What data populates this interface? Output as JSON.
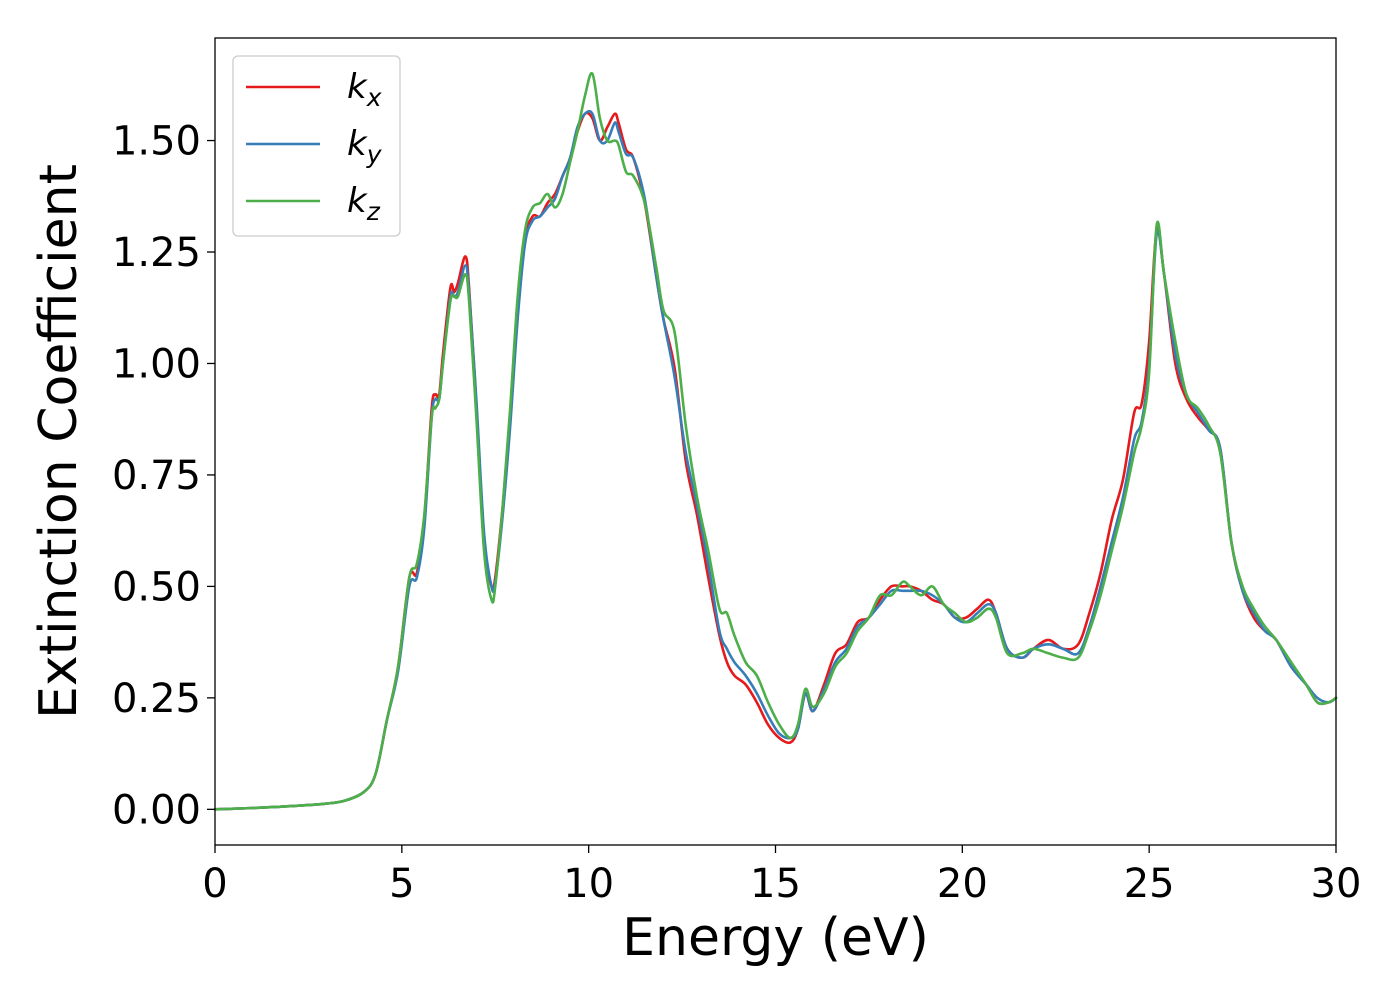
{
  "chart_data": {
    "type": "line",
    "title": "",
    "xlabel": "Energy (eV)",
    "ylabel": "Extinction Coefficient",
    "xlim": [
      0,
      30
    ],
    "ylim": [
      -0.08,
      1.73
    ],
    "xticks": [
      0,
      5,
      10,
      15,
      20,
      25,
      30
    ],
    "xtick_labels": [
      "0",
      "5",
      "10",
      "15",
      "20",
      "25",
      "30"
    ],
    "yticks": [
      0.0,
      0.25,
      0.5,
      0.75,
      1.0,
      1.25,
      1.5
    ],
    "ytick_labels": [
      "0.00",
      "0.25",
      "0.50",
      "0.75",
      "1.00",
      "1.25",
      "1.50"
    ],
    "grid": false,
    "legend_position": "top-left",
    "series": [
      {
        "name": "k_x",
        "legend_base": "k",
        "legend_sub": "x",
        "color": "#e41a1c",
        "x": [
          0,
          1,
          2,
          3,
          3.5,
          4,
          4.3,
          4.6,
          4.9,
          5.2,
          5.4,
          5.6,
          5.8,
          5.9,
          6.0,
          6.1,
          6.3,
          6.4,
          6.5,
          6.7,
          6.8,
          7.0,
          7.2,
          7.4,
          7.5,
          7.7,
          7.9,
          8.1,
          8.3,
          8.5,
          8.7,
          8.9,
          9.1,
          9.3,
          9.5,
          9.7,
          9.9,
          10.1,
          10.3,
          10.5,
          10.7,
          10.8,
          11.0,
          11.2,
          11.5,
          11.8,
          12.0,
          12.3,
          12.6,
          12.9,
          13.2,
          13.5,
          13.7,
          13.9,
          14.2,
          14.5,
          14.8,
          15.1,
          15.4,
          15.6,
          15.8,
          16.0,
          16.3,
          16.6,
          16.9,
          17.2,
          17.5,
          17.8,
          18.1,
          18.4,
          18.6,
          18.9,
          19.2,
          19.5,
          19.8,
          20.1,
          20.4,
          20.7,
          20.9,
          21.2,
          21.6,
          21.9,
          22.3,
          22.7,
          23.1,
          23.4,
          23.7,
          24.0,
          24.3,
          24.6,
          24.8,
          25.0,
          25.2,
          25.4,
          25.7,
          26.0,
          26.3,
          26.6,
          26.9,
          27.2,
          27.5,
          27.8,
          28.1,
          28.4,
          28.8,
          29.2,
          29.5,
          29.8,
          30.0
        ],
        "y": [
          0.0,
          0.003,
          0.007,
          0.013,
          0.02,
          0.04,
          0.08,
          0.2,
          0.32,
          0.52,
          0.53,
          0.65,
          0.9,
          0.93,
          0.93,
          1.02,
          1.17,
          1.16,
          1.18,
          1.24,
          1.17,
          0.9,
          0.6,
          0.5,
          0.52,
          0.68,
          0.88,
          1.12,
          1.28,
          1.33,
          1.33,
          1.36,
          1.38,
          1.42,
          1.46,
          1.52,
          1.56,
          1.55,
          1.5,
          1.53,
          1.56,
          1.54,
          1.48,
          1.46,
          1.36,
          1.2,
          1.1,
          0.99,
          0.78,
          0.66,
          0.52,
          0.39,
          0.33,
          0.3,
          0.28,
          0.24,
          0.19,
          0.16,
          0.15,
          0.18,
          0.26,
          0.22,
          0.28,
          0.35,
          0.37,
          0.42,
          0.43,
          0.47,
          0.5,
          0.5,
          0.5,
          0.49,
          0.47,
          0.46,
          0.43,
          0.43,
          0.45,
          0.47,
          0.44,
          0.36,
          0.34,
          0.36,
          0.38,
          0.36,
          0.37,
          0.44,
          0.53,
          0.65,
          0.74,
          0.89,
          0.91,
          1.05,
          1.3,
          1.2,
          1.0,
          0.92,
          0.88,
          0.85,
          0.81,
          0.6,
          0.49,
          0.43,
          0.4,
          0.38,
          0.32,
          0.28,
          0.24,
          0.24,
          0.25
        ]
      },
      {
        "name": "k_y",
        "legend_base": "k",
        "legend_sub": "y",
        "color": "#377eb8",
        "x": [
          0,
          1,
          2,
          3,
          3.5,
          4,
          4.3,
          4.6,
          4.9,
          5.2,
          5.4,
          5.6,
          5.8,
          5.9,
          6.0,
          6.1,
          6.3,
          6.4,
          6.5,
          6.7,
          6.8,
          7.0,
          7.2,
          7.4,
          7.5,
          7.7,
          7.9,
          8.1,
          8.3,
          8.5,
          8.7,
          8.9,
          9.1,
          9.3,
          9.5,
          9.7,
          9.9,
          10.1,
          10.3,
          10.5,
          10.7,
          10.8,
          11.0,
          11.2,
          11.5,
          11.8,
          12.0,
          12.3,
          12.6,
          12.9,
          13.2,
          13.5,
          13.7,
          13.9,
          14.2,
          14.5,
          14.8,
          15.1,
          15.4,
          15.6,
          15.8,
          16.0,
          16.3,
          16.6,
          16.9,
          17.2,
          17.5,
          17.8,
          18.1,
          18.4,
          18.6,
          18.9,
          19.2,
          19.5,
          19.8,
          20.1,
          20.4,
          20.7,
          20.9,
          21.2,
          21.6,
          21.9,
          22.3,
          22.7,
          23.1,
          23.4,
          23.7,
          24.0,
          24.3,
          24.6,
          24.8,
          25.0,
          25.2,
          25.4,
          25.7,
          26.0,
          26.3,
          26.6,
          26.9,
          27.2,
          27.5,
          27.8,
          28.1,
          28.4,
          28.8,
          29.2,
          29.5,
          29.8,
          30.0
        ],
        "y": [
          0.0,
          0.003,
          0.007,
          0.013,
          0.02,
          0.04,
          0.08,
          0.2,
          0.31,
          0.5,
          0.52,
          0.63,
          0.88,
          0.92,
          0.92,
          1.0,
          1.15,
          1.15,
          1.16,
          1.22,
          1.16,
          0.91,
          0.62,
          0.5,
          0.51,
          0.66,
          0.86,
          1.1,
          1.27,
          1.32,
          1.33,
          1.35,
          1.37,
          1.42,
          1.46,
          1.53,
          1.56,
          1.56,
          1.5,
          1.5,
          1.54,
          1.52,
          1.47,
          1.46,
          1.37,
          1.2,
          1.1,
          0.97,
          0.8,
          0.68,
          0.55,
          0.4,
          0.36,
          0.33,
          0.3,
          0.26,
          0.21,
          0.17,
          0.16,
          0.18,
          0.26,
          0.22,
          0.27,
          0.33,
          0.36,
          0.41,
          0.43,
          0.46,
          0.49,
          0.49,
          0.49,
          0.49,
          0.48,
          0.46,
          0.43,
          0.42,
          0.44,
          0.46,
          0.44,
          0.36,
          0.34,
          0.36,
          0.37,
          0.36,
          0.35,
          0.41,
          0.5,
          0.6,
          0.7,
          0.83,
          0.87,
          1.0,
          1.29,
          1.2,
          1.02,
          0.93,
          0.89,
          0.85,
          0.81,
          0.6,
          0.49,
          0.44,
          0.4,
          0.38,
          0.32,
          0.28,
          0.25,
          0.24,
          0.25
        ]
      },
      {
        "name": "k_z",
        "legend_base": "k",
        "legend_sub": "z",
        "color": "#4daf4a",
        "x": [
          0,
          1,
          2,
          3,
          3.5,
          4,
          4.3,
          4.6,
          4.9,
          5.2,
          5.4,
          5.6,
          5.8,
          5.9,
          6.0,
          6.1,
          6.3,
          6.4,
          6.5,
          6.7,
          6.8,
          7.0,
          7.2,
          7.4,
          7.5,
          7.7,
          7.9,
          8.1,
          8.3,
          8.5,
          8.7,
          8.9,
          9.1,
          9.3,
          9.5,
          9.7,
          9.9,
          10.1,
          10.3,
          10.5,
          10.7,
          10.8,
          11.0,
          11.2,
          11.5,
          11.8,
          12.0,
          12.3,
          12.6,
          12.9,
          13.2,
          13.5,
          13.7,
          13.9,
          14.2,
          14.5,
          14.8,
          15.1,
          15.4,
          15.6,
          15.8,
          16.0,
          16.3,
          16.6,
          16.9,
          17.2,
          17.5,
          17.8,
          18.1,
          18.4,
          18.6,
          18.9,
          19.2,
          19.5,
          19.8,
          20.1,
          20.4,
          20.7,
          20.9,
          21.2,
          21.6,
          21.9,
          22.3,
          22.7,
          23.1,
          23.4,
          23.7,
          24.0,
          24.3,
          24.6,
          24.8,
          25.0,
          25.2,
          25.4,
          25.7,
          26.0,
          26.3,
          26.6,
          26.9,
          27.2,
          27.5,
          27.8,
          28.1,
          28.4,
          28.8,
          29.2,
          29.5,
          29.8,
          30.0
        ],
        "y": [
          0.0,
          0.003,
          0.007,
          0.013,
          0.02,
          0.04,
          0.08,
          0.2,
          0.32,
          0.52,
          0.55,
          0.66,
          0.88,
          0.9,
          0.92,
          1.0,
          1.14,
          1.15,
          1.15,
          1.2,
          1.14,
          0.87,
          0.58,
          0.47,
          0.5,
          0.68,
          0.9,
          1.15,
          1.3,
          1.35,
          1.36,
          1.38,
          1.35,
          1.38,
          1.45,
          1.52,
          1.6,
          1.65,
          1.55,
          1.5,
          1.5,
          1.49,
          1.43,
          1.42,
          1.36,
          1.22,
          1.12,
          1.07,
          0.86,
          0.7,
          0.58,
          0.45,
          0.44,
          0.39,
          0.33,
          0.3,
          0.24,
          0.19,
          0.16,
          0.19,
          0.27,
          0.23,
          0.26,
          0.32,
          0.35,
          0.4,
          0.43,
          0.48,
          0.48,
          0.51,
          0.5,
          0.48,
          0.5,
          0.46,
          0.44,
          0.42,
          0.43,
          0.45,
          0.43,
          0.35,
          0.35,
          0.36,
          0.35,
          0.34,
          0.34,
          0.4,
          0.48,
          0.58,
          0.68,
          0.8,
          0.86,
          0.98,
          1.31,
          1.2,
          1.05,
          0.93,
          0.9,
          0.86,
          0.8,
          0.6,
          0.5,
          0.45,
          0.41,
          0.38,
          0.33,
          0.28,
          0.24,
          0.24,
          0.25
        ]
      }
    ]
  }
}
